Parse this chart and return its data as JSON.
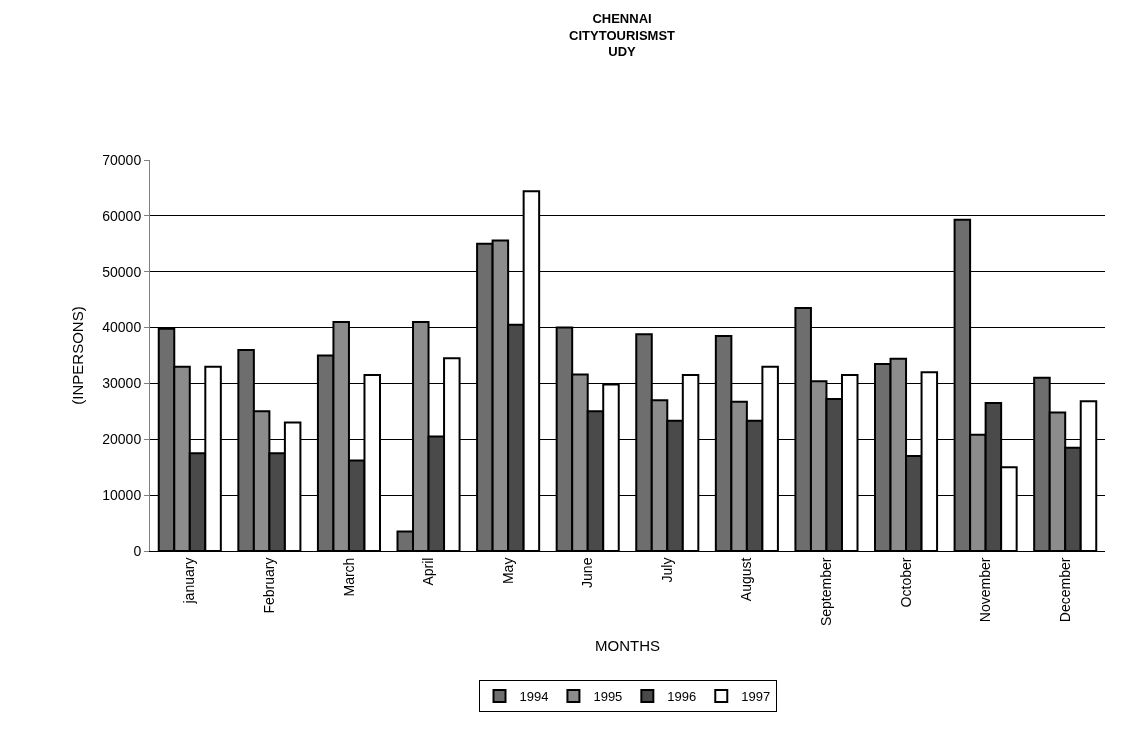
{
  "chart_data": {
    "type": "bar",
    "title": "CHENNAI\nCITYTOURISMST\nUDY",
    "xlabel": "MONTHS",
    "ylabel": "(INPERSONS)",
    "categories": [
      "january",
      "February",
      "March",
      "April",
      "May",
      "June",
      "July",
      "August",
      "September",
      "October",
      "November",
      "December"
    ],
    "series": [
      {
        "name": "1994",
        "color": "#6e6e6e",
        "values": [
          39800,
          36000,
          35000,
          3500,
          55000,
          40000,
          38800,
          38500,
          43500,
          33500,
          59300,
          31000
        ]
      },
      {
        "name": "1995",
        "color": "#8c8c8c",
        "values": [
          33000,
          25000,
          41000,
          41000,
          55600,
          31600,
          27000,
          26700,
          30400,
          34400,
          20800,
          24800
        ]
      },
      {
        "name": "1996",
        "color": "#4a4a4a",
        "values": [
          17500,
          17500,
          16200,
          20500,
          40500,
          25000,
          23300,
          23300,
          27200,
          17000,
          26500,
          18500
        ]
      },
      {
        "name": "1997",
        "color": "#ffffff",
        "values": [
          33000,
          23000,
          31500,
          34500,
          64400,
          29800,
          31500,
          33000,
          31500,
          32000,
          15000,
          26800
        ]
      }
    ],
    "ylim": [
      0,
      70000
    ],
    "yticks": [
      0,
      10000,
      20000,
      30000,
      40000,
      50000,
      60000,
      70000
    ],
    "grid": "y",
    "legend": "bottom"
  }
}
